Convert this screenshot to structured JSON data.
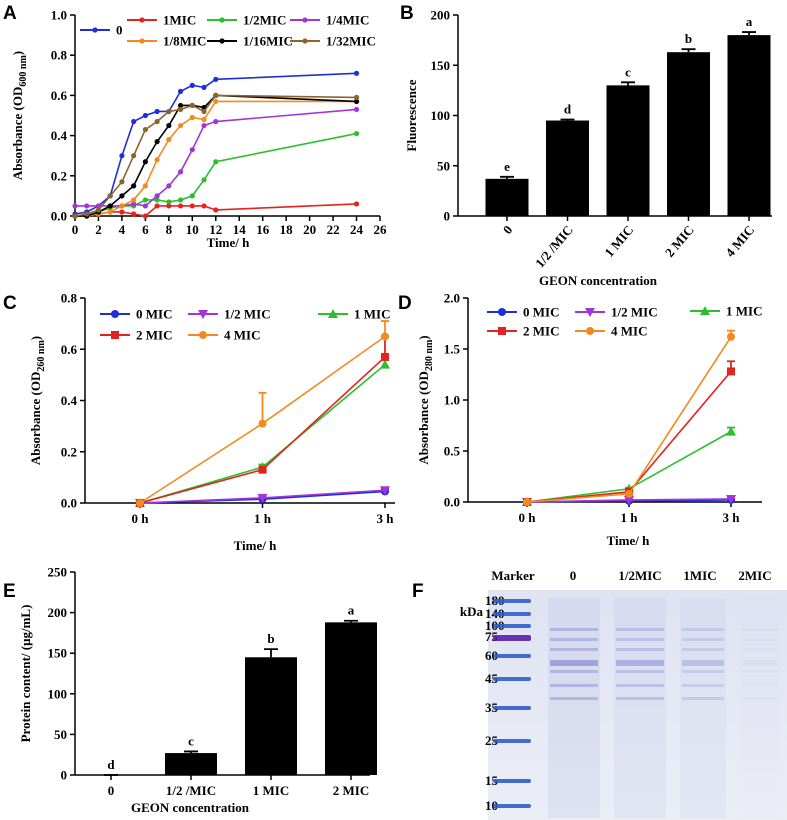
{
  "chart_data": [
    {
      "type": "line",
      "panel": "A",
      "x_label": "Time/ h",
      "y_label": "Absorbance (OD",
      "y_label_sub": "600 nm",
      "y_label_end": ")",
      "x": [
        0,
        1,
        2,
        3,
        4,
        5,
        6,
        7,
        8,
        9,
        10,
        11,
        12,
        24
      ],
      "xlim": [
        0,
        26
      ],
      "xticks": [
        0,
        2,
        4,
        6,
        8,
        10,
        12,
        14,
        16,
        18,
        20,
        22,
        24,
        26
      ],
      "ylim": [
        0,
        1
      ],
      "yticks": [
        {
          "value": 0,
          "label": "0.0"
        },
        0.2,
        0.4,
        0.6,
        0.8,
        {
          "value": 1,
          "label": "1.0"
        }
      ],
      "series": [
        {
          "name": "0",
          "color": "#1f2fd8",
          "values": [
            0.01,
            0.02,
            0.05,
            0.1,
            0.3,
            0.47,
            0.5,
            0.52,
            0.52,
            0.62,
            0.65,
            0.64,
            0.68,
            0.71
          ]
        },
        {
          "name": "1MIC",
          "color": "#e3231f",
          "values": [
            0.0,
            0.0,
            0.01,
            0.02,
            0.02,
            0.01,
            0.0,
            0.05,
            0.05,
            0.05,
            0.05,
            0.05,
            0.03,
            0.06
          ]
        },
        {
          "name": "1/2MIC",
          "color": "#2cbf2c",
          "values": [
            0.0,
            0.0,
            0.02,
            0.04,
            0.05,
            0.05,
            0.08,
            0.08,
            0.07,
            0.08,
            0.1,
            0.18,
            0.27,
            0.41
          ]
        },
        {
          "name": "1/4MIC",
          "color": "#a335d6",
          "values": [
            0.05,
            0.05,
            0.05,
            0.05,
            0.05,
            0.06,
            0.05,
            0.1,
            0.15,
            0.22,
            0.33,
            0.45,
            0.47,
            0.53
          ]
        },
        {
          "name": "1/8MIC",
          "color": "#f28a1f",
          "values": [
            0.0,
            0.0,
            0.01,
            0.02,
            0.05,
            0.08,
            0.15,
            0.28,
            0.38,
            0.45,
            0.49,
            0.48,
            0.57,
            0.57
          ]
        },
        {
          "name": "1/16MIC",
          "color": "#000000",
          "values": [
            0.0,
            0.0,
            0.02,
            0.05,
            0.1,
            0.15,
            0.27,
            0.37,
            0.45,
            0.55,
            0.55,
            0.54,
            0.6,
            0.57
          ]
        },
        {
          "name": "1/32MIC",
          "color": "#8b6430",
          "values": [
            0.0,
            0.01,
            0.03,
            0.1,
            0.17,
            0.3,
            0.43,
            0.47,
            0.52,
            0.53,
            0.55,
            0.52,
            0.6,
            0.59
          ]
        }
      ]
    },
    {
      "type": "bar",
      "panel": "B",
      "x_label": "GEON concentration",
      "y_label": "Fluorescence",
      "categories": [
        "0",
        "1/2 /MIC",
        "1 MIC",
        "2 MIC",
        "4 MIC"
      ],
      "values": [
        37,
        95,
        130,
        163,
        180
      ],
      "errors": [
        2,
        1,
        3,
        3,
        3
      ],
      "annotations": [
        "e",
        "d",
        "c",
        "b",
        "a"
      ],
      "color": "#000000",
      "ylim": [
        0,
        200
      ],
      "yticks": [
        0,
        50,
        100,
        150,
        200
      ]
    },
    {
      "type": "line",
      "panel": "C",
      "x_label": "Time/ h",
      "y_label": "Absorbance (OD",
      "y_label_sub": "260 nm",
      "y_label_end": ")",
      "categories": [
        "0 h",
        "1 h",
        "3 h"
      ],
      "ylim": [
        0,
        0.8
      ],
      "yticks": [
        {
          "value": 0,
          "label": "0.0"
        },
        0.2,
        0.4,
        0.6,
        0.8
      ],
      "series": [
        {
          "name": "0 MIC",
          "color": "#1f2fd8",
          "marker": "circle",
          "values": [
            0,
            0.015,
            0.045
          ],
          "errors": [
            0,
            0.005,
            0.01
          ]
        },
        {
          "name": "1/2 MIC",
          "color": "#a335d6",
          "marker": "triangle-down",
          "values": [
            0,
            0.02,
            0.05
          ],
          "errors": [
            0,
            0.005,
            0.01
          ]
        },
        {
          "name": "1 MIC",
          "color": "#2cbf2c",
          "marker": "triangle-up",
          "values": [
            0,
            0.14,
            0.54
          ],
          "errors": [
            0,
            0.01,
            0.03
          ]
        },
        {
          "name": "2 MIC",
          "color": "#e3231f",
          "marker": "square",
          "values": [
            0,
            0.13,
            0.57
          ],
          "errors": [
            0,
            0.01,
            0.08
          ]
        },
        {
          "name": "4 MIC",
          "color": "#f28a1f",
          "marker": "circle",
          "values": [
            0,
            0.31,
            0.65
          ],
          "errors": [
            0,
            0.12,
            0.06
          ]
        }
      ]
    },
    {
      "type": "line",
      "panel": "D",
      "x_label": "Time/ h",
      "y_label": "Absorbance (OD",
      "y_label_sub": "280 nm",
      "y_label_end": ")",
      "categories": [
        "0 h",
        "1 h",
        "3 h"
      ],
      "ylim": [
        0,
        2
      ],
      "yticks": [
        {
          "value": 0,
          "label": "0.0"
        },
        0.5,
        {
          "value": 1,
          "label": "1.0"
        },
        1.5,
        {
          "value": 2,
          "label": "2.0"
        }
      ],
      "series": [
        {
          "name": "0 MIC",
          "color": "#1f2fd8",
          "marker": "circle",
          "values": [
            0,
            0.01,
            0.02
          ],
          "errors": [
            0,
            0.005,
            0.01
          ]
        },
        {
          "name": "1/2 MIC",
          "color": "#a335d6",
          "marker": "triangle-down",
          "values": [
            0,
            0.02,
            0.03
          ],
          "errors": [
            0,
            0.005,
            0.01
          ]
        },
        {
          "name": "1 MIC",
          "color": "#2cbf2c",
          "marker": "triangle-up",
          "values": [
            0,
            0.13,
            0.69
          ],
          "errors": [
            0,
            0.01,
            0.04
          ]
        },
        {
          "name": "2 MIC",
          "color": "#e3231f",
          "marker": "square",
          "values": [
            0,
            0.1,
            1.28
          ],
          "errors": [
            0,
            0.01,
            0.1
          ]
        },
        {
          "name": "4 MIC",
          "color": "#f28a1f",
          "marker": "circle",
          "values": [
            0,
            0.08,
            1.62
          ],
          "errors": [
            0,
            0.01,
            0.06
          ]
        }
      ]
    },
    {
      "type": "bar",
      "panel": "E",
      "x_label": "GEON concentration",
      "y_label": "Protein content/ (μg/mL)",
      "categories": [
        "0",
        "1/2 /MIC",
        "1 MIC",
        "2 MIC"
      ],
      "values": [
        0,
        27,
        145,
        188
      ],
      "errors": [
        0,
        2,
        10,
        2
      ],
      "annotations": [
        "d",
        "c",
        "b",
        "a"
      ],
      "color": "#000000",
      "ylim": [
        0,
        250
      ],
      "yticks": [
        0,
        50,
        100,
        150,
        200,
        250
      ]
    },
    {
      "type": "gel",
      "panel": "F",
      "lanes": [
        "Marker",
        "0",
        "1/2MIC",
        "1MIC",
        "2MIC"
      ],
      "unit": "kDa",
      "marker_sizes": [
        180,
        140,
        100,
        75,
        60,
        45,
        35,
        25,
        15,
        10
      ]
    }
  ]
}
